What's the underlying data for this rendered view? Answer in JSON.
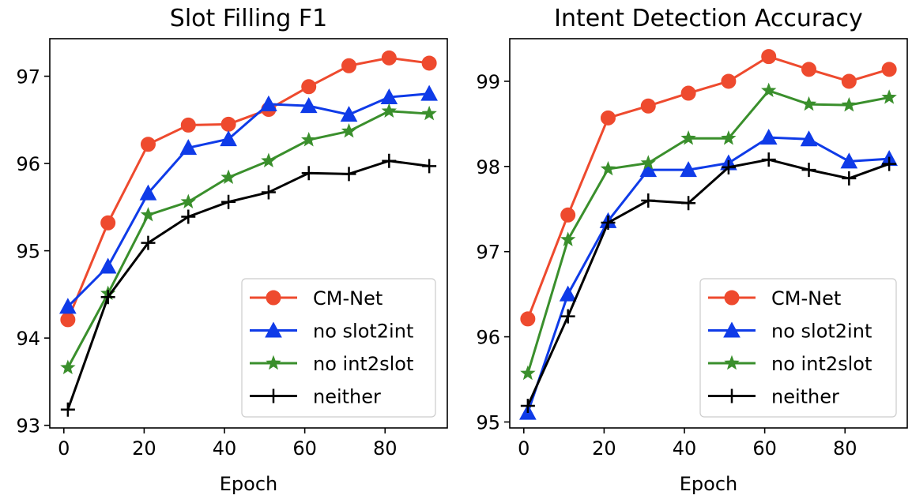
{
  "chart_data": [
    {
      "type": "line",
      "title": "Slot Filling F1",
      "xlabel": "Epoch",
      "ylabel": "",
      "x": [
        1,
        11,
        21,
        31,
        41,
        51,
        61,
        71,
        81,
        91
      ],
      "xlim": [
        -3.5,
        95.5
      ],
      "ylim": [
        92.97,
        97.43
      ],
      "xticks": [
        0,
        20,
        40,
        60,
        80
      ],
      "yticks": [
        93,
        94,
        95,
        96,
        97
      ],
      "grid": false,
      "legend_position": "lower-right",
      "series": [
        {
          "name": "CM-Net",
          "color": "#ee4a2e",
          "marker": "circle",
          "values": [
            94.21,
            95.32,
            96.22,
            96.44,
            96.45,
            96.62,
            96.88,
            97.12,
            97.21,
            97.15
          ]
        },
        {
          "name": "no slot2int",
          "color": "#0f3be8",
          "marker": "triangle",
          "values": [
            94.36,
            94.82,
            95.66,
            96.18,
            96.28,
            96.68,
            96.66,
            96.56,
            96.76,
            96.8
          ]
        },
        {
          "name": "no int2slot",
          "color": "#3a8f2c",
          "marker": "star",
          "values": [
            93.66,
            94.51,
            95.41,
            95.56,
            95.84,
            96.03,
            96.27,
            96.37,
            96.6,
            96.57
          ]
        },
        {
          "name": "neither",
          "color": "#000000",
          "marker": "plus",
          "values": [
            93.18,
            94.47,
            95.09,
            95.39,
            95.56,
            95.67,
            95.89,
            95.88,
            96.03,
            95.97
          ]
        }
      ]
    },
    {
      "type": "line",
      "title": "Intent Detection Accuracy",
      "xlabel": "Epoch",
      "ylabel": "",
      "x": [
        1,
        11,
        21,
        31,
        41,
        51,
        61,
        71,
        81,
        91
      ],
      "xlim": [
        -3.5,
        95.5
      ],
      "ylim": [
        94.93,
        99.5
      ],
      "xticks": [
        0,
        20,
        40,
        60,
        80
      ],
      "yticks": [
        95,
        96,
        97,
        98,
        99
      ],
      "grid": false,
      "legend_position": "lower-right",
      "series": [
        {
          "name": "CM-Net",
          "color": "#ee4a2e",
          "marker": "circle",
          "values": [
            96.21,
            97.43,
            98.57,
            98.71,
            98.86,
            99.0,
            99.29,
            99.14,
            99.0,
            99.14
          ]
        },
        {
          "name": "no slot2int",
          "color": "#0f3be8",
          "marker": "triangle",
          "values": [
            95.11,
            96.5,
            97.36,
            97.96,
            97.96,
            98.04,
            98.34,
            98.32,
            98.06,
            98.09
          ]
        },
        {
          "name": "no int2slot",
          "color": "#3a8f2c",
          "marker": "star",
          "values": [
            95.57,
            97.14,
            97.97,
            98.04,
            98.33,
            98.33,
            98.89,
            98.73,
            98.72,
            98.81
          ]
        },
        {
          "name": "neither",
          "color": "#000000",
          "marker": "plus",
          "values": [
            95.19,
            96.24,
            97.34,
            97.6,
            97.57,
            97.99,
            98.08,
            97.96,
            97.86,
            98.03
          ]
        }
      ]
    }
  ]
}
